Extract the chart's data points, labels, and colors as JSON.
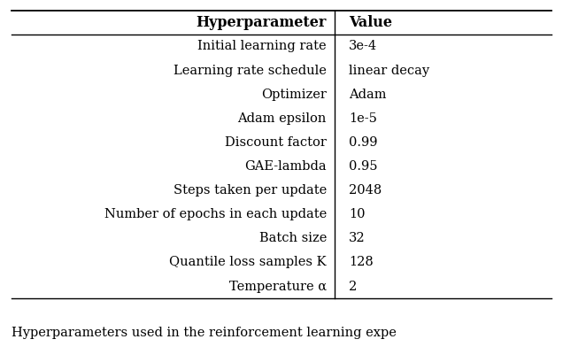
{
  "headers": [
    "Hyperparameter",
    "Value"
  ],
  "rows": [
    [
      "Initial learning rate",
      "3e-4"
    ],
    [
      "Learning rate schedule",
      "linear decay"
    ],
    [
      "Optimizer",
      "Adam"
    ],
    [
      "Adam epsilon",
      "1e-5"
    ],
    [
      "Discount factor",
      "0.99"
    ],
    [
      "GAE-lambda",
      "0.95"
    ],
    [
      "Steps taken per update",
      "2048"
    ],
    [
      "Number of epochs in each update",
      "10"
    ],
    [
      "Batch size",
      "32"
    ],
    [
      "Quantile loss samples K",
      "128"
    ],
    [
      "Temperature α",
      "2"
    ]
  ],
  "caption": "Hyperparameters used in the reinforcement learning expe",
  "col_split": 0.595,
  "bg_color": "#ffffff",
  "text_color": "#000000",
  "font_size": 10.5,
  "header_font_size": 11.5,
  "caption_font_size": 10.5
}
